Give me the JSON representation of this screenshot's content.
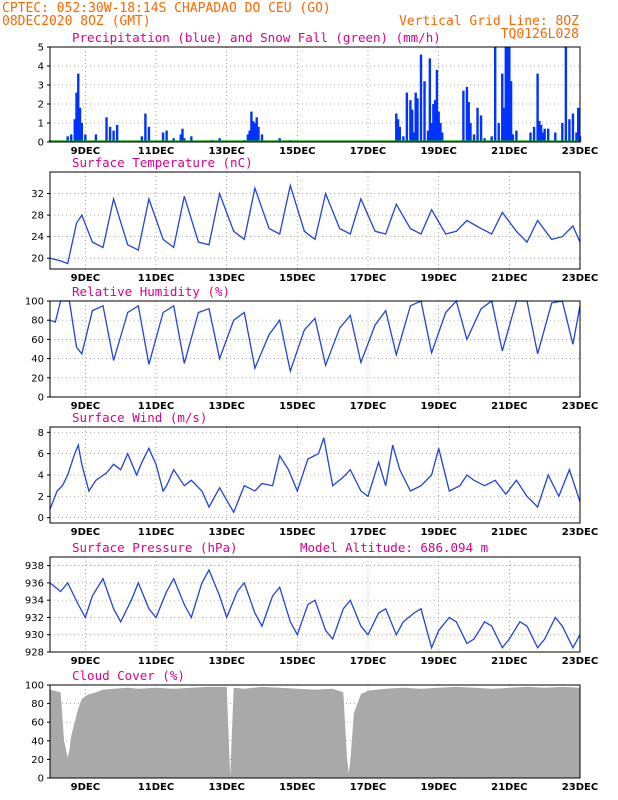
{
  "header": {
    "line1": "CPTEC:   052:30W-18:14S   CHAPADAO DO CEU (GO)",
    "line2_left": "08DEC2020 8OZ (GMT)",
    "line2_right": "Vertical Grid Line: 8OZ",
    "line3_right": "TQ0126L028",
    "color": "#ff6600"
  },
  "x_axis": {
    "day_range": [
      8,
      23
    ],
    "tick_labels": [
      "9DEC",
      "11DEC",
      "13DEC",
      "15DEC",
      "17DEC",
      "19DEC",
      "21DEC",
      "23DEC"
    ],
    "tick_days": [
      9,
      11,
      13,
      15,
      17,
      19,
      21,
      23
    ]
  },
  "colors": {
    "title": "#dd0088",
    "precip": "#0033ff",
    "snow": "#00aa00",
    "line": "#2244dd",
    "cloud": "#a9a9a9",
    "grid": "#888888"
  },
  "chart_data": [
    {
      "type": "bar",
      "title": "Precipitation (blue) and Snow Fall (green) (mm/h)",
      "ylim": [
        0,
        5
      ],
      "yticks": [
        0,
        1,
        2,
        3,
        4,
        5
      ],
      "series": [
        {
          "name": "Precipitation",
          "x": [
            8.0,
            8.5,
            8.6,
            8.7,
            8.75,
            8.8,
            8.85,
            8.9,
            9.0,
            9.3,
            9.6,
            9.7,
            9.8,
            9.9,
            10.6,
            10.7,
            10.8,
            11.2,
            11.3,
            11.5,
            11.7,
            11.75,
            11.8,
            12.0,
            12.6,
            12.8,
            13.5,
            13.6,
            13.65,
            13.7,
            13.75,
            13.8,
            13.85,
            13.9,
            14.0,
            14.5,
            14.8,
            17.8,
            17.85,
            17.9,
            18.0,
            18.1,
            18.2,
            18.25,
            18.3,
            18.35,
            18.4,
            18.5,
            18.6,
            18.7,
            18.75,
            18.8,
            18.85,
            18.9,
            18.95,
            19.0,
            19.05,
            19.1,
            19.7,
            19.8,
            19.85,
            19.9,
            20.0,
            20.1,
            20.2,
            20.3,
            20.5,
            20.6,
            20.7,
            20.8,
            20.85,
            20.9,
            20.95,
            21.0,
            21.05,
            21.1,
            21.2,
            21.6,
            21.7,
            21.8,
            21.85,
            21.9,
            21.95,
            22.0,
            22.1,
            22.3,
            22.5,
            22.6,
            22.7,
            22.8,
            22.9,
            22.95,
            23.0
          ],
          "values": [
            0.1,
            0.3,
            0.4,
            1.2,
            2.6,
            3.6,
            1.8,
            1.0,
            0.4,
            0.4,
            1.3,
            0.8,
            0.6,
            0.9,
            0.3,
            1.5,
            0.8,
            0.5,
            0.6,
            0.2,
            0.4,
            0.7,
            0.2,
            0.3,
            0.1,
            0.2,
            0.1,
            0.4,
            0.6,
            1.6,
            1.1,
            1.0,
            1.3,
            0.8,
            0.4,
            0.2,
            0.1,
            1.5,
            1.2,
            0.8,
            0.3,
            2.6,
            2.2,
            1.7,
            0.5,
            2.6,
            2.3,
            4.6,
            3.2,
            0.6,
            4.4,
            1.0,
            2.0,
            2.2,
            3.8,
            1.6,
            1.0,
            0.5,
            2.7,
            2.9,
            2.1,
            1.0,
            0.4,
            1.8,
            1.4,
            0.2,
            0.3,
            5.0,
            1.0,
            3.6,
            1.8,
            5.0,
            5.0,
            5.0,
            3.2,
            0.4,
            0.6,
            0.5,
            0.8,
            3.6,
            1.1,
            0.9,
            0.5,
            0.7,
            0.7,
            0.5,
            1.0,
            5.0,
            1.2,
            1.5,
            0.5,
            1.8,
            0.3
          ]
        },
        {
          "name": "Snow Fall",
          "x": [],
          "values": []
        }
      ]
    },
    {
      "type": "line",
      "title": "Surface Temperature (nC)",
      "ylim": [
        18,
        36
      ],
      "yticks": [
        20,
        24,
        28,
        32
      ],
      "series": [
        {
          "name": "Temperature",
          "x": [
            8.0,
            8.3,
            8.5,
            8.75,
            8.9,
            9.2,
            9.5,
            9.8,
            10.2,
            10.5,
            10.8,
            11.2,
            11.5,
            11.8,
            12.2,
            12.5,
            12.8,
            13.2,
            13.5,
            13.8,
            14.2,
            14.5,
            14.8,
            15.2,
            15.5,
            15.8,
            16.2,
            16.5,
            16.8,
            17.2,
            17.5,
            17.8,
            18.2,
            18.5,
            18.8,
            19.2,
            19.5,
            19.8,
            20.2,
            20.5,
            20.8,
            21.2,
            21.5,
            21.8,
            22.2,
            22.5,
            22.8,
            23.0
          ],
          "values": [
            20.0,
            19.5,
            19.0,
            26.5,
            28.0,
            23.0,
            22.0,
            31.0,
            22.5,
            21.5,
            31.0,
            23.5,
            22.0,
            31.5,
            23.0,
            22.5,
            32.0,
            25.0,
            23.5,
            33.0,
            25.5,
            24.5,
            33.5,
            25.0,
            23.5,
            32.0,
            25.5,
            24.5,
            31.0,
            25.0,
            24.5,
            30.0,
            25.5,
            24.5,
            29.0,
            24.5,
            25.0,
            27.0,
            25.5,
            24.5,
            28.5,
            25.0,
            23.0,
            27.0,
            23.5,
            24.0,
            26.0,
            23.0
          ]
        }
      ]
    },
    {
      "type": "line",
      "title": "Relative Humidity (%)",
      "ylim": [
        0,
        100
      ],
      "yticks": [
        0,
        20,
        40,
        60,
        80,
        100
      ],
      "series": [
        {
          "name": "Relative Humidity",
          "x": [
            8.0,
            8.15,
            8.3,
            8.55,
            8.75,
            8.9,
            9.2,
            9.5,
            9.8,
            10.2,
            10.5,
            10.8,
            11.2,
            11.5,
            11.8,
            12.2,
            12.5,
            12.8,
            13.2,
            13.5,
            13.8,
            14.2,
            14.5,
            14.8,
            15.2,
            15.5,
            15.8,
            16.2,
            16.5,
            16.8,
            17.2,
            17.5,
            17.8,
            18.2,
            18.5,
            18.8,
            19.2,
            19.5,
            19.8,
            20.2,
            20.5,
            20.8,
            21.2,
            21.5,
            21.8,
            22.2,
            22.5,
            22.8,
            23.0
          ],
          "values": [
            80.0,
            78.0,
            100.0,
            100.0,
            52.0,
            45.0,
            90.0,
            95.0,
            38.0,
            88.0,
            95.0,
            34.0,
            88.0,
            95.0,
            35.0,
            88.0,
            92.0,
            40.0,
            80.0,
            88.0,
            30.0,
            65.0,
            80.0,
            27.0,
            70.0,
            82.0,
            33.0,
            72.0,
            85.0,
            36.0,
            75.0,
            90.0,
            44.0,
            95.0,
            100.0,
            46.0,
            88.0,
            100.0,
            60.0,
            92.0,
            100.0,
            48.0,
            100.0,
            100.0,
            45.0,
            98.0,
            100.0,
            55.0,
            95.0
          ]
        }
      ]
    },
    {
      "type": "line",
      "title": "Surface Wind (m/s)",
      "ylim": [
        -0.5,
        8.5
      ],
      "yticks": [
        0,
        2,
        4,
        6,
        8
      ],
      "series": [
        {
          "name": "Wind Speed",
          "x": [
            8.0,
            8.2,
            8.35,
            8.5,
            8.7,
            8.8,
            8.9,
            9.1,
            9.3,
            9.6,
            9.8,
            10.0,
            10.2,
            10.45,
            10.6,
            10.8,
            11.0,
            11.2,
            11.3,
            11.5,
            11.8,
            12.0,
            12.3,
            12.5,
            12.8,
            13.2,
            13.5,
            13.8,
            14.0,
            14.3,
            14.5,
            14.75,
            15.0,
            15.3,
            15.6,
            15.75,
            16.0,
            16.3,
            16.5,
            16.8,
            17.0,
            17.3,
            17.5,
            17.7,
            17.9,
            18.2,
            18.5,
            18.8,
            19.0,
            19.3,
            19.6,
            19.8,
            20.0,
            20.3,
            20.6,
            20.9,
            21.2,
            21.5,
            21.8,
            22.1,
            22.4,
            22.7,
            23.0
          ],
          "values": [
            0.8,
            2.5,
            3.0,
            4.0,
            6.0,
            6.8,
            5.0,
            2.5,
            3.5,
            4.2,
            5.0,
            4.5,
            6.0,
            4.0,
            5.2,
            6.5,
            5.0,
            2.5,
            3.0,
            4.5,
            3.0,
            3.5,
            2.5,
            1.0,
            2.8,
            0.5,
            3.0,
            2.5,
            3.2,
            3.0,
            5.8,
            4.5,
            2.5,
            5.5,
            6.0,
            7.5,
            3.0,
            3.8,
            4.5,
            2.5,
            2.0,
            5.2,
            3.0,
            6.8,
            4.5,
            2.5,
            3.0,
            4.0,
            6.5,
            2.5,
            3.0,
            4.0,
            3.5,
            3.0,
            3.5,
            2.2,
            3.5,
            2.0,
            1.0,
            4.0,
            2.0,
            4.5,
            1.5
          ]
        }
      ]
    },
    {
      "type": "line",
      "title": "Surface Pressure (hPa)",
      "annotation": "Model Altitude: 686.094 m",
      "ylim": [
        928,
        939
      ],
      "yticks": [
        928,
        930,
        932,
        934,
        936,
        938
      ],
      "series": [
        {
          "name": "Pressure",
          "x": [
            8.0,
            8.3,
            8.5,
            8.8,
            9.0,
            9.2,
            9.5,
            9.8,
            10.0,
            10.3,
            10.5,
            10.8,
            11.0,
            11.3,
            11.5,
            11.8,
            12.0,
            12.3,
            12.5,
            12.8,
            13.0,
            13.3,
            13.5,
            13.8,
            14.0,
            14.3,
            14.5,
            14.8,
            15.0,
            15.3,
            15.5,
            15.8,
            16.0,
            16.3,
            16.5,
            16.8,
            17.0,
            17.3,
            17.5,
            17.8,
            18.0,
            18.3,
            18.5,
            18.8,
            19.0,
            19.3,
            19.5,
            19.8,
            20.0,
            20.3,
            20.5,
            20.8,
            21.0,
            21.3,
            21.5,
            21.8,
            22.0,
            22.3,
            22.5,
            22.8,
            23.0
          ],
          "values": [
            936.0,
            935.0,
            936.0,
            933.5,
            932.0,
            934.5,
            936.5,
            933.0,
            931.5,
            934.0,
            936.0,
            933.0,
            932.0,
            935.0,
            936.5,
            933.5,
            932.0,
            936.0,
            937.5,
            934.5,
            932.0,
            935.0,
            936.0,
            932.5,
            931.0,
            934.5,
            935.5,
            931.5,
            930.0,
            933.5,
            934.0,
            930.5,
            929.5,
            933.0,
            934.0,
            931.0,
            930.0,
            932.5,
            933.0,
            930.0,
            931.5,
            932.5,
            933.0,
            928.5,
            930.5,
            932.0,
            931.5,
            929.0,
            929.5,
            931.5,
            931.0,
            928.5,
            929.5,
            931.5,
            931.0,
            928.5,
            929.5,
            932.0,
            931.0,
            928.5,
            930.0
          ]
        }
      ]
    },
    {
      "type": "area",
      "title": "Cloud Cover (%)",
      "ylim": [
        0,
        100
      ],
      "yticks": [
        0,
        20,
        40,
        60,
        80,
        100
      ],
      "series": [
        {
          "name": "Cloud Cover",
          "x": [
            8.0,
            8.3,
            8.4,
            8.5,
            8.55,
            8.6,
            8.7,
            8.8,
            8.9,
            9.0,
            9.1,
            9.3,
            9.5,
            9.8,
            10.2,
            10.5,
            11.0,
            11.5,
            12.0,
            12.5,
            13.0,
            13.1,
            13.2,
            13.5,
            14.0,
            14.5,
            15.0,
            15.5,
            16.0,
            16.3,
            16.4,
            16.45,
            16.5,
            16.6,
            16.8,
            17.0,
            17.5,
            18.0,
            18.5,
            19.0,
            19.5,
            20.0,
            20.5,
            21.0,
            21.5,
            22.0,
            22.5,
            23.0
          ],
          "values": [
            95.0,
            92.0,
            40.0,
            22.0,
            30.0,
            45.0,
            60.0,
            75.0,
            85.0,
            88.0,
            90.0,
            92.0,
            95.0,
            96.0,
            97.0,
            96.0,
            97.0,
            96.0,
            97.0,
            98.0,
            98.0,
            2.0,
            97.0,
            96.0,
            98.0,
            97.0,
            96.0,
            95.0,
            96.0,
            92.0,
            25.0,
            5.0,
            18.0,
            70.0,
            90.0,
            94.0,
            96.0,
            97.0,
            96.0,
            97.0,
            98.0,
            97.0,
            96.0,
            97.0,
            98.0,
            97.0,
            98.0,
            97.0
          ]
        }
      ]
    }
  ]
}
